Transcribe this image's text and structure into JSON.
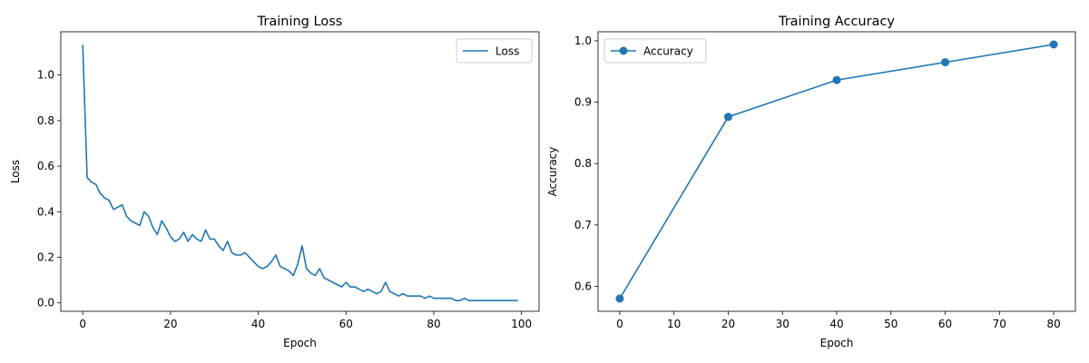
{
  "chart_data": [
    {
      "type": "line",
      "title": "Training Loss",
      "xlabel": "Epoch",
      "ylabel": "Loss",
      "xlim": [
        -5,
        104
      ],
      "ylim": [
        -0.037,
        1.19
      ],
      "xticks": [
        0,
        20,
        40,
        60,
        80,
        100
      ],
      "yticks": [
        0.0,
        0.2,
        0.4,
        0.6,
        0.8,
        1.0
      ],
      "xtick_labels": [
        "0",
        "20",
        "40",
        "60",
        "80",
        "100"
      ],
      "ytick_labels": [
        "0.0",
        "0.2",
        "0.4",
        "0.6",
        "0.8",
        "1.0"
      ],
      "grid": false,
      "legend": {
        "location": "upper right",
        "entries": [
          "Loss"
        ]
      },
      "series": [
        {
          "name": "Loss",
          "color": "#1f77b4",
          "marker": "none",
          "x": [
            0,
            1,
            2,
            3,
            4,
            5,
            6,
            7,
            8,
            9,
            10,
            11,
            12,
            13,
            14,
            15,
            16,
            17,
            18,
            19,
            20,
            21,
            22,
            23,
            24,
            25,
            26,
            27,
            28,
            29,
            30,
            31,
            32,
            33,
            34,
            35,
            36,
            37,
            38,
            39,
            40,
            41,
            42,
            43,
            44,
            45,
            46,
            47,
            48,
            49,
            50,
            51,
            52,
            53,
            54,
            55,
            56,
            57,
            58,
            59,
            60,
            61,
            62,
            63,
            64,
            65,
            66,
            67,
            68,
            69,
            70,
            71,
            72,
            73,
            74,
            75,
            76,
            77,
            78,
            79,
            80,
            81,
            82,
            83,
            84,
            85,
            86,
            87,
            88,
            89,
            90,
            91,
            92,
            93,
            94,
            95,
            96,
            97,
            98,
            99
          ],
          "y": [
            1.13,
            0.55,
            0.53,
            0.52,
            0.48,
            0.46,
            0.45,
            0.41,
            0.42,
            0.43,
            0.38,
            0.36,
            0.35,
            0.34,
            0.4,
            0.38,
            0.33,
            0.3,
            0.36,
            0.33,
            0.29,
            0.27,
            0.28,
            0.31,
            0.27,
            0.3,
            0.28,
            0.27,
            0.32,
            0.28,
            0.28,
            0.25,
            0.23,
            0.27,
            0.22,
            0.21,
            0.21,
            0.22,
            0.2,
            0.18,
            0.16,
            0.15,
            0.16,
            0.18,
            0.21,
            0.16,
            0.15,
            0.14,
            0.12,
            0.17,
            0.25,
            0.15,
            0.13,
            0.12,
            0.15,
            0.11,
            0.1,
            0.09,
            0.08,
            0.07,
            0.09,
            0.07,
            0.07,
            0.06,
            0.05,
            0.06,
            0.05,
            0.04,
            0.05,
            0.09,
            0.05,
            0.04,
            0.03,
            0.04,
            0.03,
            0.03,
            0.03,
            0.03,
            0.02,
            0.03,
            0.02,
            0.02,
            0.02,
            0.02,
            0.02,
            0.01,
            0.01,
            0.02,
            0.01,
            0.01,
            0.01,
            0.01,
            0.01,
            0.01,
            0.01,
            0.01,
            0.01,
            0.01,
            0.01,
            0.01
          ]
        }
      ]
    },
    {
      "type": "line",
      "title": "Training Accuracy",
      "xlabel": "Epoch",
      "ylabel": "Accuracy",
      "xlim": [
        -4,
        84
      ],
      "ylim": [
        0.5593,
        1.0147
      ],
      "xticks": [
        0,
        10,
        20,
        30,
        40,
        50,
        60,
        70,
        80
      ],
      "yticks": [
        0.6,
        0.7,
        0.8,
        0.9,
        1.0
      ],
      "xtick_labels": [
        "0",
        "10",
        "20",
        "30",
        "40",
        "50",
        "60",
        "70",
        "80"
      ],
      "ytick_labels": [
        "0.6",
        "0.7",
        "0.8",
        "0.9",
        "1.0"
      ],
      "grid": false,
      "legend": {
        "location": "upper left",
        "entries": [
          "Accuracy"
        ]
      },
      "series": [
        {
          "name": "Accuracy",
          "color": "#1f77b4",
          "marker": "circle",
          "x": [
            0,
            20,
            40,
            60,
            80
          ],
          "y": [
            0.58,
            0.876,
            0.936,
            0.965,
            0.994
          ]
        }
      ]
    }
  ]
}
